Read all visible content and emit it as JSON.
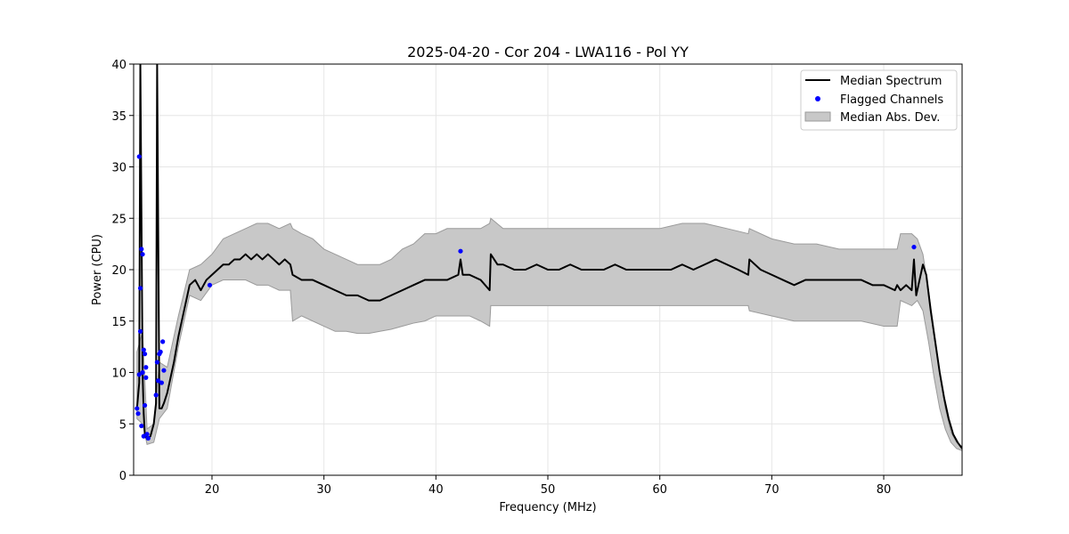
{
  "chart_data": {
    "type": "line",
    "title": "2025-04-20 - Cor 204 - LWA116 - Pol YY",
    "xlabel": "Frequency (MHz)",
    "ylabel": "Power (CPU)",
    "xlim": [
      13,
      87
    ],
    "ylim": [
      0,
      40
    ],
    "xticks": [
      20,
      30,
      40,
      50,
      60,
      70,
      80
    ],
    "yticks": [
      0,
      5,
      10,
      15,
      20,
      25,
      30,
      35,
      40
    ],
    "grid": true,
    "legend_position": "top-right",
    "legend": [
      "Median Spectrum",
      "Flagged Channels",
      "Median Abs. Dev."
    ],
    "colors": {
      "median_line": "#000000",
      "flagged_points": "#0000ff",
      "mad_fill": "#c8c8c8",
      "mad_edge": "#9a9a9a"
    },
    "series": [
      {
        "name": "Median Spectrum",
        "kind": "line",
        "x": [
          13.3,
          13.5,
          13.6,
          13.8,
          13.9,
          14.0,
          14.2,
          14.5,
          14.8,
          15.0,
          15.1,
          15.3,
          15.5,
          15.7,
          16.0,
          16.3,
          16.6,
          17.0,
          17.5,
          18.0,
          18.5,
          19.0,
          19.5,
          20.0,
          20.5,
          21.0,
          21.5,
          22.0,
          22.5,
          23.0,
          23.5,
          24.0,
          24.5,
          25.0,
          25.5,
          26.0,
          26.5,
          27.0,
          27.2,
          28.0,
          29.0,
          30.0,
          31.0,
          32.0,
          33.0,
          34.0,
          35.0,
          36.0,
          37.0,
          38.0,
          39.0,
          40.0,
          41.0,
          42.0,
          42.2,
          42.4,
          43.0,
          44.0,
          44.8,
          44.9,
          45.5,
          46.0,
          47.0,
          48.0,
          49.0,
          50.0,
          51.0,
          52.0,
          53.0,
          54.0,
          55.0,
          56.0,
          57.0,
          58.0,
          59.0,
          60.0,
          61.0,
          62.0,
          63.0,
          64.0,
          65.0,
          66.0,
          67.0,
          67.9,
          68.0,
          69.0,
          70.0,
          71.0,
          72.0,
          73.0,
          74.0,
          75.0,
          76.0,
          77.0,
          78.0,
          79.0,
          80.0,
          81.0,
          81.2,
          81.5,
          82.0,
          82.5,
          82.7,
          82.9,
          83.2,
          83.5,
          83.8,
          84.2,
          84.6,
          85.0,
          85.4,
          85.8,
          86.2,
          86.6,
          87.0
        ],
        "y": [
          6.5,
          9.0,
          40.0,
          10.0,
          6.0,
          4.0,
          3.5,
          3.8,
          5.0,
          7.0,
          40.0,
          6.5,
          6.5,
          7.0,
          8.0,
          9.5,
          11.0,
          13.5,
          16.0,
          18.5,
          19.0,
          18.0,
          19.0,
          19.5,
          20.0,
          20.5,
          20.5,
          21.0,
          21.0,
          21.5,
          21.0,
          21.5,
          21.0,
          21.5,
          21.0,
          20.5,
          21.0,
          20.5,
          19.5,
          19.0,
          19.0,
          18.5,
          18.0,
          17.5,
          17.5,
          17.0,
          17.0,
          17.5,
          18.0,
          18.5,
          19.0,
          19.0,
          19.0,
          19.5,
          21.0,
          19.5,
          19.5,
          19.0,
          18.0,
          21.5,
          20.5,
          20.5,
          20.0,
          20.0,
          20.5,
          20.0,
          20.0,
          20.5,
          20.0,
          20.0,
          20.0,
          20.5,
          20.0,
          20.0,
          20.0,
          20.0,
          20.0,
          20.5,
          20.0,
          20.5,
          21.0,
          20.5,
          20.0,
          19.5,
          21.0,
          20.0,
          19.5,
          19.0,
          18.5,
          19.0,
          19.0,
          19.0,
          19.0,
          19.0,
          19.0,
          18.5,
          18.5,
          18.0,
          18.5,
          18.0,
          18.5,
          18.0,
          21.0,
          17.5,
          19.0,
          20.5,
          19.5,
          16.0,
          13.0,
          10.0,
          7.5,
          5.5,
          4.0,
          3.2,
          2.6
        ]
      },
      {
        "name": "Median Abs. Dev.",
        "kind": "band",
        "x": [
          13.3,
          13.8,
          14.2,
          14.8,
          15.3,
          16.0,
          17.0,
          18.0,
          19.0,
          20.0,
          21.0,
          22.0,
          23.0,
          24.0,
          25.0,
          26.0,
          27.0,
          27.2,
          28.0,
          29.0,
          30.0,
          31.0,
          32.0,
          33.0,
          34.0,
          35.0,
          36.0,
          37.0,
          38.0,
          39.0,
          40.0,
          41.0,
          42.0,
          43.0,
          44.0,
          44.8,
          44.9,
          46.0,
          48.0,
          50.0,
          52.0,
          54.0,
          56.0,
          58.0,
          60.0,
          62.0,
          64.0,
          66.0,
          67.9,
          68.0,
          70.0,
          72.0,
          74.0,
          76.0,
          78.0,
          80.0,
          81.2,
          81.5,
          82.5,
          83.0,
          83.5,
          84.0,
          84.5,
          85.0,
          85.5,
          86.0,
          86.5,
          87.0
        ],
        "lower": [
          5.5,
          5.0,
          3.0,
          3.2,
          5.5,
          6.5,
          12.5,
          17.5,
          17.0,
          18.5,
          19.0,
          19.0,
          19.0,
          18.5,
          18.5,
          18.0,
          18.0,
          15.0,
          15.5,
          15.0,
          14.5,
          14.0,
          14.0,
          13.8,
          13.8,
          14.0,
          14.2,
          14.5,
          14.8,
          15.0,
          15.5,
          15.5,
          15.5,
          15.5,
          15.0,
          14.5,
          16.5,
          16.5,
          16.5,
          16.5,
          16.5,
          16.5,
          16.5,
          16.5,
          16.5,
          16.5,
          16.5,
          16.5,
          16.5,
          16.0,
          15.5,
          15.0,
          15.0,
          15.0,
          15.0,
          14.5,
          14.5,
          17.0,
          16.5,
          17.0,
          16.0,
          13.0,
          9.5,
          6.5,
          4.5,
          3.2,
          2.6,
          2.4
        ],
        "upper": [
          12.0,
          14.0,
          4.5,
          5.0,
          11.0,
          10.5,
          15.5,
          20.0,
          20.5,
          21.5,
          23.0,
          23.5,
          24.0,
          24.5,
          24.5,
          24.0,
          24.5,
          24.0,
          23.5,
          23.0,
          22.0,
          21.5,
          21.0,
          20.5,
          20.5,
          20.5,
          21.0,
          22.0,
          22.5,
          23.5,
          23.5,
          24.0,
          24.0,
          24.0,
          24.0,
          24.5,
          25.0,
          24.0,
          24.0,
          24.0,
          24.0,
          24.0,
          24.0,
          24.0,
          24.0,
          24.5,
          24.5,
          24.0,
          23.5,
          24.0,
          23.0,
          22.5,
          22.5,
          22.0,
          22.0,
          22.0,
          22.0,
          23.5,
          23.5,
          23.0,
          21.5,
          18.0,
          14.0,
          10.0,
          6.5,
          4.2,
          3.2,
          2.8
        ]
      },
      {
        "name": "Flagged Channels",
        "kind": "scatter",
        "x": [
          13.3,
          13.4,
          13.5,
          13.5,
          13.6,
          13.6,
          13.7,
          13.7,
          13.8,
          13.8,
          13.9,
          13.9,
          14.0,
          14.0,
          14.1,
          14.1,
          14.2,
          14.3,
          15.0,
          15.1,
          15.2,
          15.3,
          15.4,
          15.5,
          15.6,
          15.7,
          19.8,
          42.2,
          82.7
        ],
        "y": [
          6.5,
          6.0,
          31.0,
          9.8,
          14.0,
          18.2,
          22.0,
          4.8,
          21.5,
          10.0,
          12.2,
          3.8,
          11.8,
          6.8,
          10.5,
          9.5,
          4.0,
          3.6,
          7.8,
          11.0,
          9.2,
          11.8,
          12.0,
          9.0,
          13.0,
          10.2,
          18.5,
          21.8,
          22.2
        ]
      }
    ]
  }
}
